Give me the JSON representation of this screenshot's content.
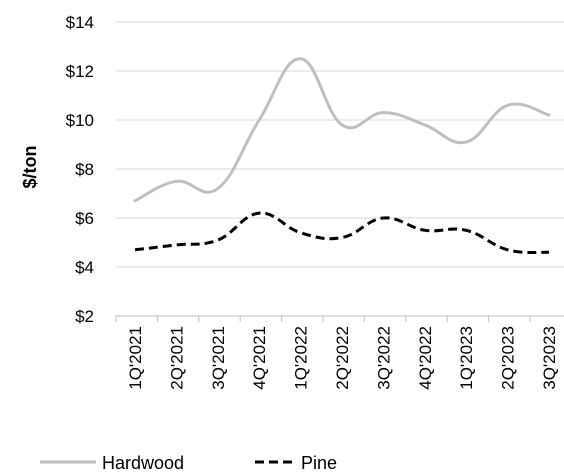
{
  "chart_data": {
    "type": "line",
    "title": "",
    "xlabel": "",
    "ylabel": "$/ton",
    "categories": [
      "1Q'2021",
      "2Q'2021",
      "3Q'2021",
      "4Q'2021",
      "1Q'2022",
      "2Q'2022",
      "3Q'2022",
      "4Q'2022",
      "1Q'2023",
      "2Q'2023",
      "3Q'2023"
    ],
    "series": [
      {
        "name": "Hardwood",
        "values": [
          6.7,
          7.5,
          7.2,
          10.0,
          12.5,
          9.8,
          10.3,
          9.8,
          9.1,
          10.6,
          10.2
        ],
        "color": "#bfbfbf",
        "dash": "solid"
      },
      {
        "name": "Pine",
        "values": [
          4.7,
          4.9,
          5.1,
          6.2,
          5.4,
          5.2,
          6.0,
          5.5,
          5.5,
          4.7,
          4.6
        ],
        "color": "#000000",
        "dash": "dashed"
      }
    ],
    "ylim": [
      2,
      14
    ],
    "yticks": [
      2,
      4,
      6,
      8,
      10,
      12,
      14
    ],
    "ytick_labels": [
      "$2",
      "$4",
      "$6",
      "$8",
      "$10",
      "$12",
      "$14"
    ],
    "grid": true,
    "legend_position": "bottom"
  }
}
